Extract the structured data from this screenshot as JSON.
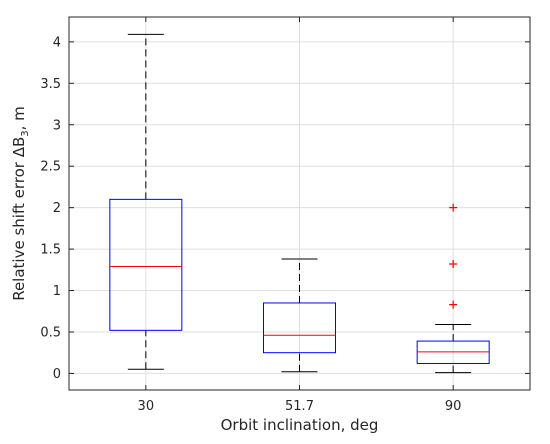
{
  "chart_data": {
    "type": "box",
    "title": "",
    "xlabel": "Orbit inclination, deg",
    "ylabel": {
      "main": "Relative shift error ΔB",
      "subscript": "3",
      "suffix": ", m"
    },
    "ylim": [
      -0.2,
      4.3
    ],
    "yticks": [
      0,
      0.5,
      1,
      1.5,
      2,
      2.5,
      3,
      3.5,
      4
    ],
    "grid": true,
    "categories": [
      "30",
      "51.7",
      "90"
    ],
    "boxes": [
      {
        "category": "30",
        "whisker_low": 0.05,
        "q1": 0.52,
        "median": 1.29,
        "q3": 2.1,
        "whisker_high": 4.09,
        "outliers": []
      },
      {
        "category": "51.7",
        "whisker_low": 0.02,
        "q1": 0.25,
        "median": 0.46,
        "q3": 0.85,
        "whisker_high": 1.38,
        "outliers": []
      },
      {
        "category": "90",
        "whisker_low": 0.01,
        "q1": 0.12,
        "median": 0.26,
        "q3": 0.39,
        "whisker_high": 0.59,
        "outliers": [
          0.83,
          1.32,
          2.0
        ]
      }
    ],
    "colors": {
      "box": "#0000ff",
      "median": "#ff0000",
      "whisker": "#000000",
      "outlier": "#ff0000",
      "grid": "#dfdfdf",
      "axis": "#262626"
    }
  }
}
